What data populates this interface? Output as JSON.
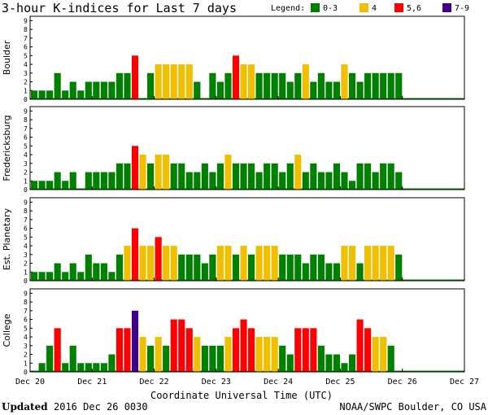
{
  "chart_data": {
    "type": "bar",
    "title": "3-hour K-indices for Last 7 days",
    "legend": {
      "label": "Legend:",
      "entries": [
        {
          "label": "0-3",
          "color": "#008000"
        },
        {
          "label": "4",
          "color": "#f0c000"
        },
        {
          "label": "5,6",
          "color": "#ff0000"
        },
        {
          "label": "7-9",
          "color": "#40008a"
        }
      ]
    },
    "xlabel": "Coordinate Universal Time (UTC)",
    "x_ticks": [
      "Dec 20",
      "Dec 21",
      "Dec 22",
      "Dec 23",
      "Dec 24",
      "Dec 25",
      "Dec 26",
      "Dec 27"
    ],
    "ylim": [
      0,
      9
    ],
    "y_ticks": [
      "0",
      "1",
      "2",
      "3",
      "4",
      "5",
      "6",
      "7",
      "8",
      "9"
    ],
    "bars_per_day": 8,
    "series": [
      {
        "name": "Boulder",
        "values": [
          1,
          1,
          1,
          3,
          1,
          2,
          1,
          2,
          2,
          2,
          2,
          3,
          3,
          5,
          0,
          3,
          4,
          4,
          4,
          4,
          4,
          2,
          0,
          3,
          2,
          3,
          5,
          4,
          4,
          3,
          3,
          3,
          3,
          2,
          3,
          4,
          2,
          3,
          2,
          2,
          4,
          3,
          2,
          3,
          3,
          3,
          3,
          3,
          0,
          0,
          0,
          0,
          0,
          0,
          0,
          0
        ]
      },
      {
        "name": "Fredericksburg",
        "values": [
          1,
          1,
          1,
          2,
          1,
          2,
          0,
          2,
          2,
          2,
          2,
          3,
          3,
          5,
          4,
          3,
          4,
          4,
          3,
          3,
          2,
          2,
          3,
          2,
          3,
          4,
          3,
          3,
          3,
          2,
          3,
          3,
          2,
          3,
          4,
          2,
          3,
          2,
          2,
          3,
          2,
          1,
          3,
          3,
          2,
          3,
          3,
          2,
          0,
          0,
          0,
          0,
          0,
          0,
          0,
          0
        ]
      },
      {
        "name": "Est. Planetary",
        "values": [
          1,
          1,
          1,
          2,
          1,
          2,
          1,
          3,
          2,
          2,
          1,
          3,
          4,
          6,
          4,
          4,
          5,
          4,
          4,
          3,
          3,
          3,
          2,
          3,
          4,
          4,
          3,
          4,
          3,
          4,
          4,
          4,
          3,
          3,
          3,
          2,
          3,
          3,
          2,
          2,
          4,
          4,
          2,
          4,
          4,
          4,
          4,
          3,
          0,
          0,
          0,
          0,
          0,
          0,
          0,
          0
        ]
      },
      {
        "name": "College",
        "values": [
          0,
          1,
          3,
          5,
          1,
          3,
          1,
          1,
          1,
          1,
          2,
          5,
          5,
          7,
          4,
          3,
          4,
          3,
          6,
          6,
          5,
          4,
          3,
          3,
          3,
          4,
          5,
          6,
          5,
          4,
          4,
          4,
          3,
          2,
          5,
          5,
          5,
          3,
          2,
          2,
          1,
          2,
          6,
          5,
          4,
          4,
          3,
          0,
          0,
          0,
          0,
          0,
          0,
          0,
          0,
          0
        ]
      }
    ]
  },
  "footer": {
    "updated_label": "Updated",
    "updated_value": "2016 Dec 26 0030",
    "source": "NOAA/SWPC Boulder, CO USA"
  }
}
